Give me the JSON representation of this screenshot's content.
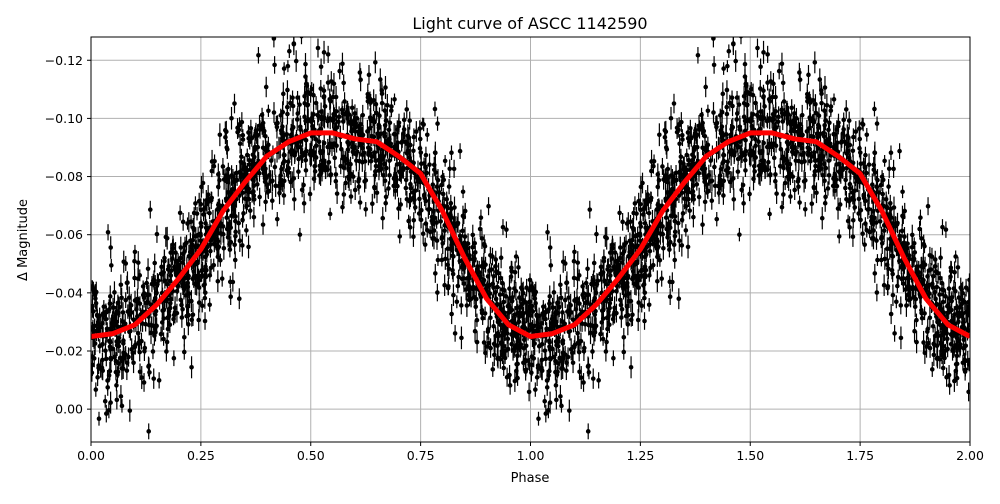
{
  "chart_data": {
    "type": "scatter",
    "title": "Light curve of ASCC 1142590",
    "xlabel": "Phase",
    "ylabel": "Δ Magnitude",
    "xlim": [
      0,
      2
    ],
    "ylim": [
      0.0113,
      -0.128
    ],
    "y_inverted": true,
    "grid": true,
    "xticks": [
      "0.00",
      "0.25",
      "0.50",
      "0.75",
      "1.00",
      "1.25",
      "1.50",
      "1.75",
      "2.00"
    ],
    "yticks": [
      "−0.12",
      "−0.10",
      "−0.08",
      "−0.06",
      "−0.04",
      "−0.02",
      "0.00"
    ],
    "series": [
      {
        "kind": "errorbar-scatter",
        "color": "#000000",
        "note_visible": "dense black points with vertical error bars scattered about the mean curve"
      },
      {
        "kind": "line",
        "color": "#ff0000",
        "x": [
          0,
          0.05,
          0.1,
          0.15,
          0.2,
          0.25,
          0.3,
          0.35,
          0.4,
          0.45,
          0.5,
          0.55,
          0.6,
          0.65,
          0.7,
          0.75,
          0.8,
          0.85,
          0.9,
          0.95,
          1.0,
          1.05,
          1.1,
          1.15,
          1.2,
          1.25,
          1.3,
          1.35,
          1.4,
          1.45,
          1.5,
          1.55,
          1.6,
          1.65,
          1.7,
          1.75,
          1.8,
          1.85,
          1.9,
          1.95,
          2.0
        ],
        "y": [
          -0.025,
          -0.026,
          -0.029,
          -0.036,
          -0.045,
          -0.055,
          -0.068,
          -0.078,
          -0.087,
          -0.092,
          -0.095,
          -0.095,
          -0.093,
          -0.092,
          -0.087,
          -0.081,
          -0.068,
          -0.052,
          -0.038,
          -0.029,
          -0.025,
          -0.026,
          -0.029,
          -0.036,
          -0.045,
          -0.055,
          -0.068,
          -0.078,
          -0.087,
          -0.092,
          -0.095,
          -0.095,
          -0.093,
          -0.092,
          -0.087,
          -0.081,
          -0.068,
          -0.052,
          -0.038,
          -0.029,
          -0.025
        ]
      }
    ]
  }
}
